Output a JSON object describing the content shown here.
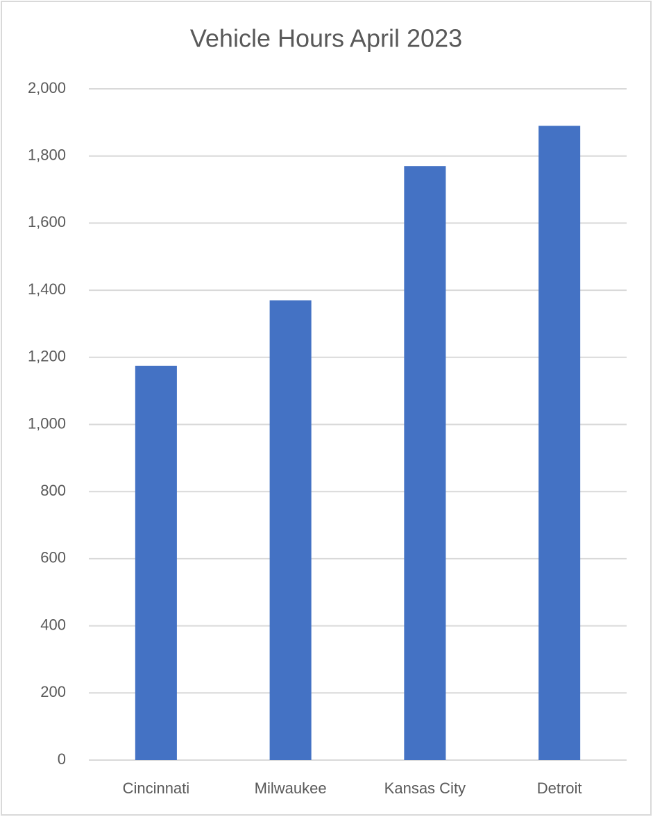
{
  "chart_data": {
    "type": "bar",
    "title": "Vehicle Hours April 2023",
    "categories": [
      "Cincinnati",
      "Milwaukee",
      "Kansas City",
      "Detroit"
    ],
    "values": [
      1175,
      1370,
      1770,
      1890
    ],
    "color": "#4472c4",
    "ylim": [
      0,
      2000
    ],
    "yticks": [
      0,
      200,
      400,
      600,
      800,
      {
        "value": 1000,
        "label": "1,000"
      },
      {
        "value": 1200,
        "label": "1,200"
      },
      {
        "value": 1400,
        "label": "1,400"
      },
      {
        "value": 1600,
        "label": "1,600"
      },
      {
        "value": 1800,
        "label": "1,800"
      },
      {
        "value": 2000,
        "label": "2,000"
      }
    ],
    "grid": true
  }
}
